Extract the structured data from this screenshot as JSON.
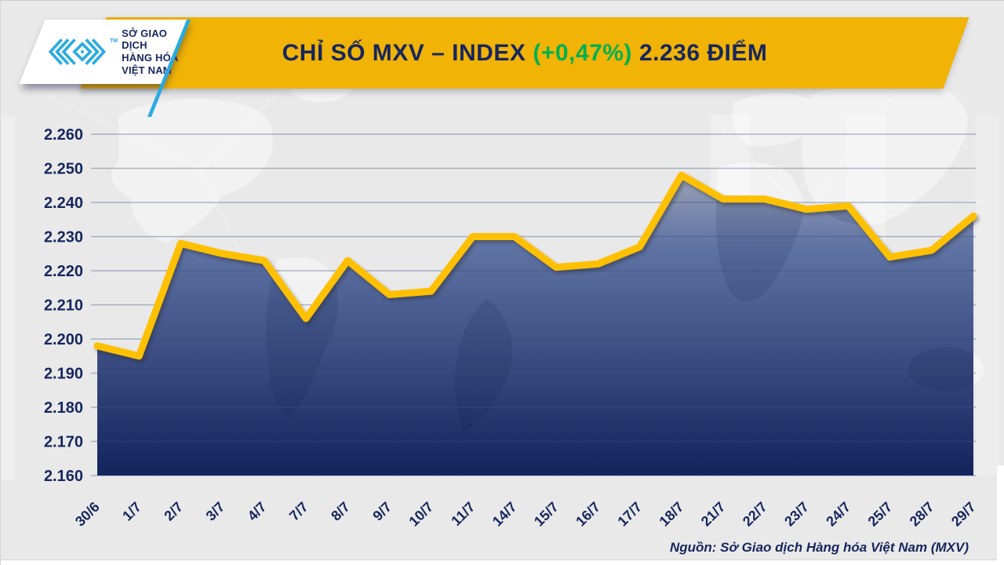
{
  "header": {
    "logo": {
      "org_lines": [
        "SỞ GIAO DỊCH",
        "HÀNG HÓA",
        "VIỆT NAM"
      ],
      "tm": "TM",
      "mark_color": "#29ABE2",
      "text_color": "#17265E"
    },
    "banner": {
      "title_main": "CHỈ SỐ MXV – INDEX",
      "title_change": "(+0,47%)",
      "title_points": "2.236 ĐIỂM",
      "bg_color": "#F0B306",
      "text_color": "#17265E",
      "change_color": "#00B050"
    }
  },
  "chart_data": {
    "type": "area",
    "title": "CHỈ SỐ MXV – INDEX",
    "categories": [
      "30/6",
      "1/7",
      "2/7",
      "3/7",
      "4/7",
      "7/7",
      "8/7",
      "9/7",
      "10/7",
      "11/7",
      "14/7",
      "15/7",
      "16/7",
      "17/7",
      "18/7",
      "21/7",
      "22/7",
      "23/7",
      "24/7",
      "25/7",
      "28/7",
      "29/7"
    ],
    "values": [
      2.198,
      2.195,
      2.228,
      2.225,
      2.223,
      2.206,
      2.223,
      2.213,
      2.214,
      2.23,
      2.23,
      2.221,
      2.222,
      2.227,
      2.248,
      2.241,
      2.241,
      2.238,
      2.239,
      2.224,
      2.226,
      2.236
    ],
    "ylim": [
      2.16,
      2.26
    ],
    "ytick_step": 0.01,
    "ytick_labels": [
      "2.260",
      "2.250",
      "2.240",
      "2.230",
      "2.220",
      "2.210",
      "2.200",
      "2.190",
      "2.180",
      "2.170",
      "2.160"
    ],
    "xlabel": "",
    "ylabel": "",
    "grid": true,
    "legend": "none",
    "line_color": "#FFC003",
    "fill_top_color": "#9DA6B8",
    "fill_mid_color": "#5F73A4",
    "fill_bottom_color": "#13235C",
    "grid_color": "#3D5183",
    "axis_label_color": "#17265E"
  },
  "footer": {
    "source": "Nguồn: Sở Giao dịch Hàng hóa Việt Nam (MXV)"
  }
}
